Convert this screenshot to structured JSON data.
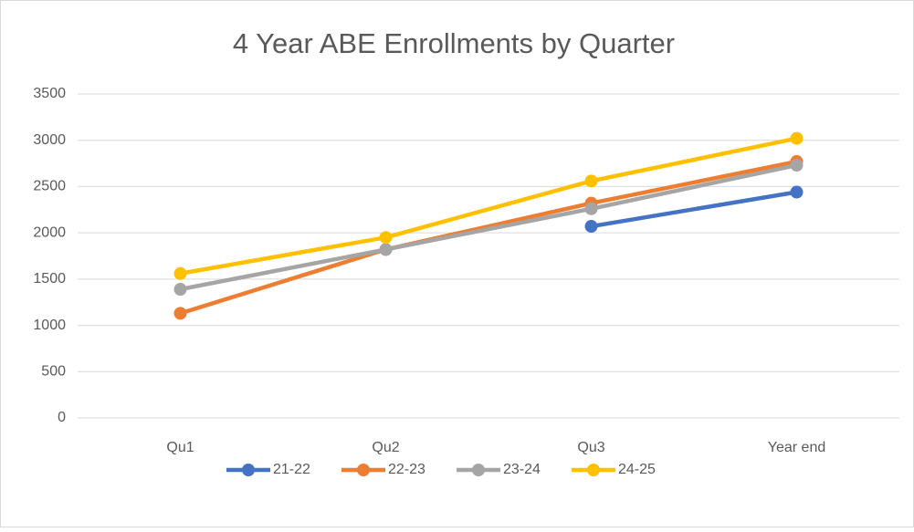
{
  "chart_data": {
    "type": "line",
    "title": "4 Year ABE Enrollments by Quarter",
    "categories": [
      "Qu1",
      "Qu2",
      "Qu3",
      "Year end"
    ],
    "series": [
      {
        "name": "21-22",
        "color": "#4472c4",
        "values": [
          null,
          null,
          2070,
          2440
        ]
      },
      {
        "name": "22-23",
        "color": "#ed7d31",
        "values": [
          1130,
          1820,
          2320,
          2770
        ]
      },
      {
        "name": "23-24",
        "color": "#a5a5a5",
        "values": [
          1390,
          1820,
          2260,
          2730
        ]
      },
      {
        "name": "24-25",
        "color": "#ffc000",
        "values": [
          1560,
          1950,
          2560,
          3020
        ]
      }
    ],
    "ylim": [
      0,
      3500
    ],
    "yticks": [
      0,
      500,
      1000,
      1500,
      2000,
      2500,
      3000,
      3500
    ],
    "grid": true,
    "legend": "bottom"
  }
}
